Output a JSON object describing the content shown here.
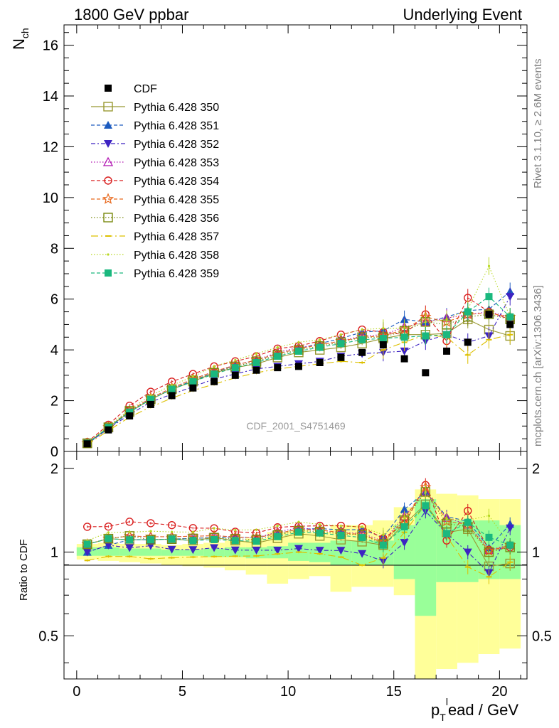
{
  "header": {
    "left": "1800 GeV ppbar",
    "right": "Underlying Event"
  },
  "side_labels": {
    "rivet": "Rivet 3.1.10, ≥ 2.6M events",
    "mcplots": "mcplots.cern.ch [arXiv:1306.3436]"
  },
  "analysis_label": "CDF_2001_S4751469",
  "chart_data": {
    "type": "scatter",
    "title": "",
    "xlabel": "p_T^lead / GeV",
    "ylabel": "N_ch",
    "ratio_ylabel": "Ratio to CDF",
    "xlim": [
      -0.6,
      21.3
    ],
    "ylim": [
      0,
      16.8
    ],
    "ratio_ylim": [
      0.35,
      2.3
    ],
    "x_ticks": [
      0,
      5,
      10,
      15,
      20
    ],
    "y_ticks": [
      0,
      2,
      4,
      6,
      8,
      10,
      12,
      14,
      16
    ],
    "ratio_ticks": [
      0.5,
      1,
      2
    ],
    "x": [
      0.5,
      1.5,
      2.5,
      3.5,
      4.5,
      5.5,
      6.5,
      7.5,
      8.5,
      9.5,
      10.5,
      11.5,
      12.5,
      13.5,
      14.5,
      15.5,
      16.5,
      17.5,
      18.5,
      19.5,
      20.5
    ],
    "legend": {
      "position": "top-left"
    },
    "reference": {
      "name": "CDF",
      "color": "#000000",
      "values": [
        0.3,
        0.85,
        1.4,
        1.85,
        2.2,
        2.5,
        2.75,
        3.0,
        3.2,
        3.3,
        3.35,
        3.5,
        3.7,
        3.9,
        4.2,
        3.65,
        3.1,
        3.95,
        4.3,
        5.4,
        5.0
      ]
    },
    "band": {
      "green_upper": [
        1.04,
        1.04,
        1.03,
        1.03,
        1.02,
        1.02,
        1.03,
        1.04,
        1.04,
        1.05,
        1.08,
        1.08,
        1.1,
        1.1,
        1.1,
        1.25,
        1.55,
        1.3,
        1.3,
        1.3,
        1.25
      ],
      "green_lower": [
        0.97,
        0.97,
        0.97,
        0.97,
        0.97,
        0.97,
        0.96,
        0.96,
        0.95,
        0.95,
        0.93,
        0.92,
        0.9,
        0.9,
        0.9,
        0.8,
        0.59,
        0.78,
        0.78,
        0.8,
        0.8
      ],
      "yellow_upper": [
        1.07,
        1.08,
        1.07,
        1.07,
        1.06,
        1.07,
        1.08,
        1.1,
        1.12,
        1.18,
        1.2,
        1.18,
        1.25,
        1.25,
        1.3,
        1.45,
        1.68,
        1.62,
        1.6,
        1.55,
        1.55
      ],
      "yellow_lower": [
        0.94,
        0.93,
        0.92,
        0.91,
        0.9,
        0.89,
        0.88,
        0.86,
        0.83,
        0.77,
        0.8,
        0.82,
        0.72,
        0.75,
        0.75,
        0.7,
        0.35,
        0.38,
        0.4,
        0.43,
        0.45
      ]
    },
    "series": [
      {
        "name": "Pythia 6.428 350",
        "color": "#999933",
        "marker": "square-open",
        "dash": "",
        "values": [
          0.32,
          0.95,
          1.55,
          2.05,
          2.45,
          2.75,
          3.1,
          3.3,
          3.45,
          3.7,
          3.9,
          4.0,
          4.1,
          4.25,
          4.45,
          4.6,
          4.6,
          4.65,
          5.2,
          4.8,
          4.55
        ]
      },
      {
        "name": "Pythia 6.428 351",
        "color": "#1c5bbf",
        "marker": "triangle-up",
        "dash": "5,3",
        "values": [
          0.3,
          0.9,
          1.55,
          2.05,
          2.45,
          2.8,
          3.1,
          3.4,
          3.6,
          3.85,
          4.05,
          4.25,
          4.45,
          4.7,
          4.75,
          5.2,
          5.1,
          5.3,
          5.55,
          5.6,
          6.3
        ]
      },
      {
        "name": "Pythia 6.428 352",
        "color": "#3d23c2",
        "marker": "triangle-down",
        "dash": "6,3,2,3",
        "values": [
          0.3,
          0.9,
          1.45,
          1.95,
          2.25,
          2.55,
          2.85,
          3.05,
          3.25,
          3.35,
          3.45,
          3.55,
          3.75,
          3.85,
          3.9,
          3.95,
          4.35,
          4.6,
          4.3,
          4.55,
          6.1
        ]
      },
      {
        "name": "Pythia 6.428 353",
        "color": "#b010b0",
        "marker": "triangle-up-open",
        "dash": "1.5,2.5",
        "values": [
          0.32,
          0.95,
          1.6,
          2.1,
          2.5,
          2.85,
          3.15,
          3.4,
          3.6,
          3.9,
          4.1,
          4.2,
          4.35,
          4.55,
          4.6,
          4.9,
          5.1,
          5.25,
          5.4,
          5.5,
          5.3
        ]
      },
      {
        "name": "Pythia 6.428 354",
        "color": "#d91e1e",
        "marker": "circle-open",
        "dash": "5,3",
        "values": [
          0.37,
          1.05,
          1.8,
          2.35,
          2.75,
          3.05,
          3.35,
          3.55,
          3.75,
          4.05,
          4.15,
          4.35,
          4.6,
          4.8,
          4.7,
          4.6,
          5.4,
          4.35,
          6.05,
          5.5,
          5.2
        ]
      },
      {
        "name": "Pythia 6.428 355",
        "color": "#e8681c",
        "marker": "star-open",
        "dash": "5,3",
        "values": [
          0.32,
          0.95,
          1.6,
          2.1,
          2.5,
          2.85,
          3.15,
          3.4,
          3.6,
          3.85,
          4.05,
          4.2,
          4.35,
          4.5,
          4.55,
          4.8,
          5.3,
          5.1,
          5.4,
          5.45,
          5.3
        ]
      },
      {
        "name": "Pythia 6.428 356",
        "color": "#7a8a10",
        "marker": "square-open",
        "dash": "1.5,2.5",
        "values": [
          0.32,
          0.95,
          1.6,
          2.05,
          2.45,
          2.8,
          3.1,
          3.35,
          3.55,
          3.8,
          4.0,
          4.15,
          4.3,
          4.5,
          4.5,
          4.75,
          5.1,
          5.0,
          5.3,
          5.4,
          5.2
        ]
      },
      {
        "name": "Pythia 6.428 357",
        "color": "#ddc000",
        "marker": "dash",
        "dash": "10,4,2,4",
        "values": [
          0.28,
          0.82,
          1.35,
          1.75,
          2.1,
          2.4,
          2.65,
          2.9,
          3.1,
          3.25,
          3.35,
          3.45,
          3.55,
          3.5,
          4.0,
          4.3,
          4.6,
          4.5,
          3.8,
          4.4,
          4.6
        ]
      },
      {
        "name": "Pythia 6.428 358",
        "color": "#b8d820",
        "marker": "dot",
        "dash": "1.5,2.5",
        "values": [
          0.33,
          1.0,
          1.65,
          2.2,
          2.6,
          2.95,
          3.35,
          3.6,
          3.85,
          4.1,
          4.3,
          4.4,
          4.6,
          4.8,
          4.85,
          4.85,
          5.1,
          5.2,
          5.6,
          7.3,
          5.3
        ]
      },
      {
        "name": "Pythia 6.428 359",
        "color": "#1ab87e",
        "marker": "square",
        "dash": "5,3",
        "values": [
          0.32,
          0.95,
          1.55,
          2.05,
          2.45,
          2.75,
          3.05,
          3.3,
          3.5,
          3.75,
          3.95,
          4.1,
          4.25,
          4.4,
          4.45,
          4.5,
          4.55,
          4.6,
          5.5,
          6.1,
          5.3
        ]
      }
    ]
  }
}
